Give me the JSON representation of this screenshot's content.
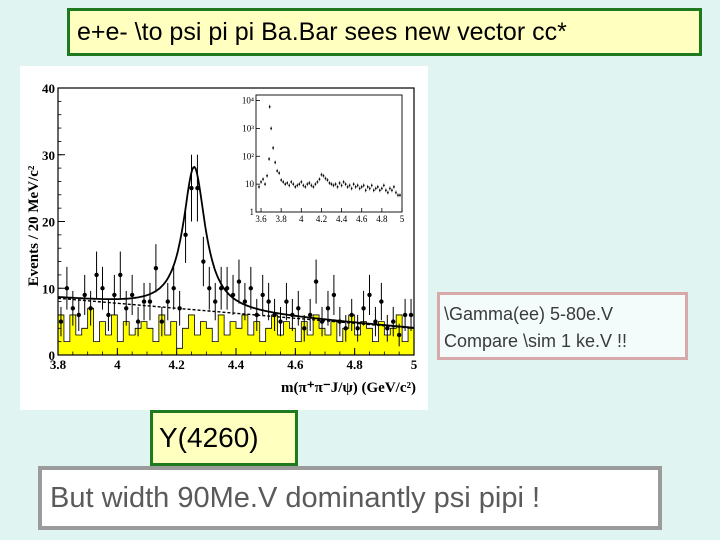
{
  "slide": {
    "title": "e+e- \\to psi pi pi Ba.Bar sees new vector cc*",
    "note_line1": "\\Gamma(ee) 5-80e.V",
    "note_line2": "Compare \\sim 1 ke.V !!",
    "resonance_label": "Y(4260)",
    "bottom_text": "But width 90Me.V dominantly psi pipi !"
  },
  "colors": {
    "title_border": "#1f7a1f",
    "title_fill": "#ffffc0",
    "background": "#e0f5f2",
    "histogram_fill": "#ffff00",
    "note_border": "#d8a9aa",
    "bottom_border": "#9b9b9b"
  },
  "chart_data": [
    {
      "type": "scatter",
      "ylabel": "Events / 20 MeV/c²",
      "xlabel": "m(π⁺π⁻J/ψ) (GeV/c²)",
      "xlim": [
        3.8,
        5.0
      ],
      "ylim": [
        0,
        40
      ],
      "x_ticks": [
        "3.8",
        "4",
        "4.2",
        "4.4",
        "4.6",
        "4.8",
        "5"
      ],
      "y_ticks": [
        "0",
        "10",
        "20",
        "30",
        "40"
      ],
      "series": [
        {
          "kind": "data-points-with-error-bars",
          "x": [
            3.81,
            3.83,
            3.85,
            3.87,
            3.89,
            3.91,
            3.93,
            3.95,
            3.97,
            3.99,
            4.01,
            4.03,
            4.05,
            4.07,
            4.09,
            4.11,
            4.13,
            4.15,
            4.17,
            4.19,
            4.21,
            4.23,
            4.25,
            4.27,
            4.29,
            4.31,
            4.33,
            4.35,
            4.37,
            4.39,
            4.41,
            4.43,
            4.45,
            4.47,
            4.49,
            4.51,
            4.53,
            4.55,
            4.57,
            4.59,
            4.61,
            4.63,
            4.65,
            4.67,
            4.69,
            4.71,
            4.73,
            4.75,
            4.77,
            4.79,
            4.81,
            4.83,
            4.85,
            4.87,
            4.89,
            4.91,
            4.93,
            4.95,
            4.97,
            4.99
          ],
          "y": [
            5,
            10,
            7,
            6,
            9,
            7,
            12,
            10,
            6,
            9,
            12,
            7,
            9,
            5,
            8,
            8,
            13,
            5,
            8,
            10,
            7,
            18,
            25,
            25,
            14,
            10,
            8,
            10,
            10,
            9,
            11,
            8,
            10,
            6,
            9,
            8,
            6,
            5,
            8,
            6,
            7,
            4,
            6,
            11,
            5,
            7,
            9,
            5,
            4,
            6,
            4,
            7,
            9,
            5,
            8,
            4,
            5,
            3,
            6,
            6
          ],
          "errors": [
            2.2,
            3.2,
            2.6,
            2.4,
            3.0,
            2.6,
            3.5,
            3.2,
            2.4,
            3.0,
            3.5,
            2.6,
            3.0,
            2.2,
            2.8,
            2.8,
            3.6,
            2.2,
            2.8,
            3.2,
            2.6,
            4.2,
            5.0,
            5.0,
            3.7,
            3.2,
            2.8,
            3.2,
            3.2,
            3.0,
            3.3,
            2.8,
            3.2,
            2.4,
            3.0,
            2.8,
            2.4,
            2.2,
            2.8,
            2.4,
            2.6,
            2.0,
            2.4,
            3.3,
            2.2,
            2.6,
            3.0,
            2.2,
            2.0,
            2.4,
            2.0,
            2.6,
            3.0,
            2.2,
            2.8,
            2.0,
            2.2,
            1.7,
            2.4,
            2.4
          ]
        },
        {
          "kind": "sideband-histogram",
          "values": [
            6,
            2,
            6,
            3,
            4,
            7,
            2,
            5,
            3,
            6,
            2,
            5,
            3,
            4,
            5,
            4,
            2,
            6,
            3,
            5,
            1,
            4,
            6,
            3,
            5,
            4,
            2,
            6,
            3,
            5,
            4,
            6,
            3,
            5,
            2,
            4,
            6,
            3,
            5,
            4,
            2,
            5,
            3,
            6,
            4,
            3,
            5,
            2,
            4,
            6,
            3,
            5,
            4,
            2,
            5,
            3,
            4,
            6,
            2,
            4
          ]
        },
        {
          "kind": "total-fit",
          "function": "breit-wigner-plus-linear",
          "peak_mass": 4.259,
          "width": 0.09,
          "peak_height": 21.4,
          "background_at_3_8": 8.5,
          "background_slope_per_gev": -3.75
        },
        {
          "kind": "background-fit-dashed",
          "y_at_3_8": 8.5,
          "y_at_5_0": 4.0
        }
      ]
    },
    {
      "type": "scatter",
      "scale": "log",
      "xlim": [
        3.55,
        5.0
      ],
      "x_ticks": [
        "3.6",
        "3.8",
        "4",
        "4.2",
        "4.4",
        "4.6",
        "4.8",
        "5"
      ],
      "y_ticks": [
        "1",
        "10",
        "10²",
        "10³",
        "10⁴"
      ],
      "series": [
        {
          "kind": "inset-points",
          "x": [
            3.58,
            3.6,
            3.62,
            3.64,
            3.66,
            3.68,
            3.686,
            3.7,
            3.72,
            3.74,
            3.76,
            3.78,
            3.8,
            3.82,
            3.84,
            3.86,
            3.88,
            3.9,
            3.92,
            3.94,
            3.96,
            3.98,
            4.0,
            4.02,
            4.04,
            4.06,
            4.08,
            4.1,
            4.12,
            4.14,
            4.16,
            4.18,
            4.2,
            4.22,
            4.24,
            4.26,
            4.28,
            4.3,
            4.32,
            4.34,
            4.36,
            4.38,
            4.4,
            4.42,
            4.44,
            4.46,
            4.48,
            4.5,
            4.52,
            4.54,
            4.56,
            4.58,
            4.6,
            4.62,
            4.64,
            4.66,
            4.68,
            4.7,
            4.72,
            4.74,
            4.76,
            4.78,
            4.8,
            4.82,
            4.84,
            4.86,
            4.88,
            4.9,
            4.92,
            4.94,
            4.96,
            4.98
          ],
          "y": [
            8,
            12,
            15,
            10,
            20,
            80,
            6000,
            1000,
            200,
            60,
            30,
            25,
            14,
            12,
            10,
            11,
            9,
            12,
            10,
            8,
            9,
            10,
            12,
            9,
            8,
            10,
            11,
            9,
            8,
            10,
            12,
            15,
            22,
            20,
            16,
            14,
            11,
            10,
            9,
            10,
            8,
            11,
            9,
            12,
            10,
            8,
            9,
            7,
            10,
            8,
            9,
            7,
            8,
            9,
            6,
            8,
            7,
            9,
            6,
            7,
            8,
            6,
            7,
            9,
            6,
            5,
            7,
            6,
            8,
            5,
            4,
            4
          ]
        }
      ]
    }
  ]
}
